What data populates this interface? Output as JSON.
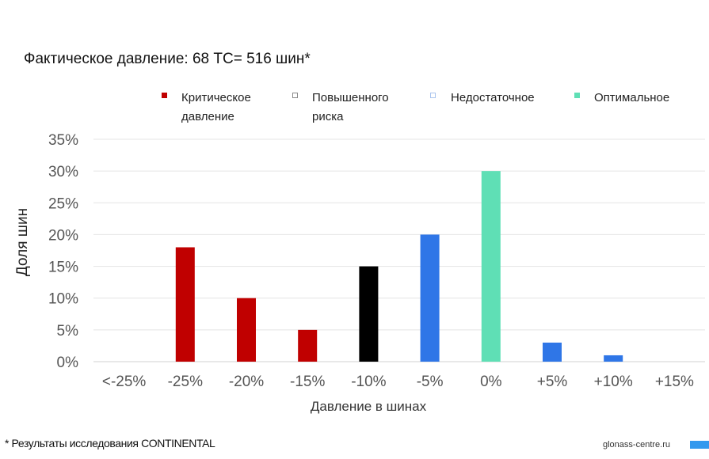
{
  "title": "Фактическое давление: 68 ТС= 516 шин*",
  "legend": [
    {
      "label_line1": "Критическое",
      "label_line2": "давление",
      "color": "#c00000"
    },
    {
      "label_line1": "Повышенного",
      "label_line2": "риска",
      "color": "#000000"
    },
    {
      "label_line1": "Недостаточное",
      "label_line2": "",
      "color": "#2f76e7"
    },
    {
      "label_line1": "Оптимальное",
      "label_line2": "",
      "color": "#5fdfb5"
    }
  ],
  "chart_data": {
    "type": "bar",
    "categories": [
      "<-25%",
      "-25%",
      "-20%",
      "-15%",
      "-10%",
      "-5%",
      "0%",
      "+5%",
      "+10%",
      "+15%"
    ],
    "values": [
      0,
      18,
      10,
      5,
      15,
      20,
      30,
      3,
      1,
      0
    ],
    "bar_colors": [
      "#c00000",
      "#c00000",
      "#c00000",
      "#c00000",
      "#000000",
      "#2f76e7",
      "#5fdfb5",
      "#2f76e7",
      "#2f76e7",
      "#2f76e7"
    ],
    "ylabel": "Доля шин",
    "xlabel": "Давление в шинах",
    "ylim": [
      0,
      35
    ],
    "yticks": [
      "0%",
      "5%",
      "10%",
      "15%",
      "20%",
      "25%",
      "30%",
      "35%"
    ],
    "grid": true
  },
  "footnote": "* Результаты исследования CONTINENTAL",
  "site": "glonass-centre.ru",
  "accent_color": "#3399ee"
}
